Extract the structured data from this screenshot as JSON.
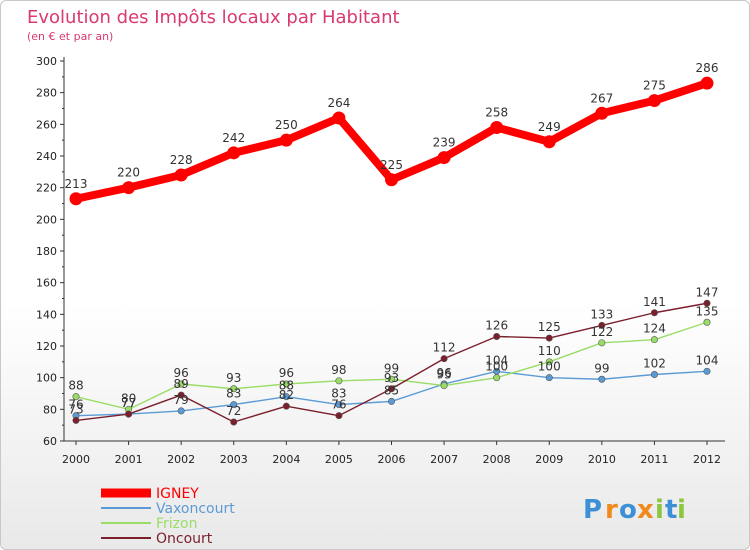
{
  "chart_data": {
    "type": "line",
    "title": "Evolution des Impôts locaux par Habitant",
    "subtitle": "(en € et par an)",
    "xlabel": "",
    "ylabel": "",
    "ylim": [
      60,
      300
    ],
    "yticks": [
      60,
      80,
      100,
      120,
      140,
      160,
      180,
      200,
      220,
      240,
      260,
      280,
      300
    ],
    "x": [
      "2000",
      "2001",
      "2002",
      "2003",
      "2004",
      "2005",
      "2006",
      "2007",
      "2008",
      "2009",
      "2010",
      "2011",
      "2012"
    ],
    "grid": false,
    "legend_position": "bottom-left",
    "series": [
      {
        "name": "IGNEY",
        "color": "#ff0000",
        "values": [
          213,
          220,
          228,
          242,
          250,
          264,
          225,
          239,
          258,
          249,
          267,
          275,
          286
        ]
      },
      {
        "name": "Vaxoncourt",
        "color": "#5b9bd5",
        "values": [
          76,
          77,
          79,
          83,
          88,
          83,
          85,
          96,
          104,
          100,
          99,
          102,
          104
        ]
      },
      {
        "name": "Frizon",
        "color": "#99dd66",
        "values": [
          88,
          80,
          96,
          93,
          96,
          98,
          99,
          95,
          100,
          110,
          122,
          124,
          135
        ]
      },
      {
        "name": "Oncourt",
        "color": "#7a1f2b",
        "values": [
          73,
          77,
          89,
          72,
          82,
          76,
          93,
          112,
          126,
          125,
          133,
          141,
          147
        ]
      }
    ],
    "data_labels": {
      "IGNEY": [
        "213",
        "220",
        "228",
        "242",
        "250",
        "264",
        "225",
        "239",
        "258",
        "249",
        "267",
        "275",
        "286"
      ],
      "Vaxoncourt": [
        "76",
        "77",
        "79",
        "83",
        "88",
        "83",
        "85",
        "96",
        "104",
        "100",
        "99",
        "102",
        "104"
      ],
      "Frizon": [
        "88",
        "80",
        "96",
        "93",
        "96",
        "98",
        "99",
        "95",
        "100",
        "110",
        "122",
        "124",
        "135"
      ],
      "Oncourt": [
        "73",
        "77",
        "89",
        "72",
        "82",
        "76",
        "93",
        "112",
        "126",
        "125",
        "133",
        "141",
        "147"
      ]
    }
  },
  "brand": {
    "letters": [
      "P",
      "r",
      "o",
      "x",
      "i",
      "t",
      "i"
    ],
    "colors": [
      "#3d8fd6",
      "#f08a1c",
      "#3d8fd6",
      "#f08a1c",
      "#8cc63f",
      "#3d8fd6",
      "#8cc63f"
    ]
  }
}
